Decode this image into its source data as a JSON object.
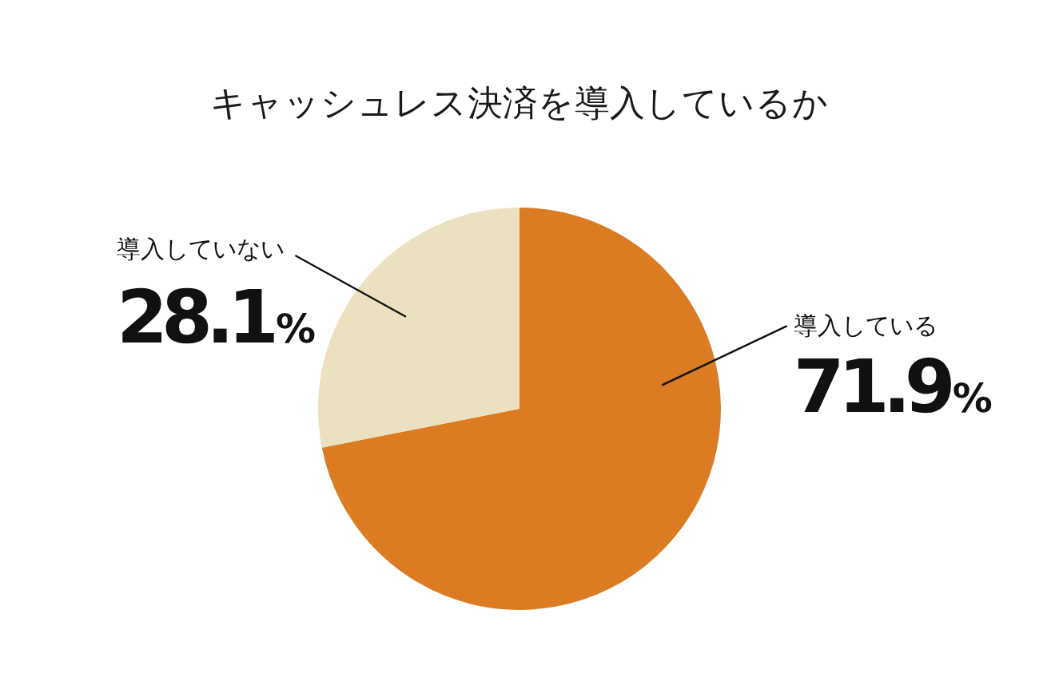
{
  "chart_data": {
    "type": "pie",
    "title": "キャッシュレス決済を導入しているか",
    "categories": [
      "導入している",
      "導入していない"
    ],
    "values": [
      71.9,
      28.1
    ],
    "colors": [
      "#db7b22",
      "#ebe1c1"
    ],
    "value_labels": [
      "71.9%",
      "28.1%"
    ]
  }
}
